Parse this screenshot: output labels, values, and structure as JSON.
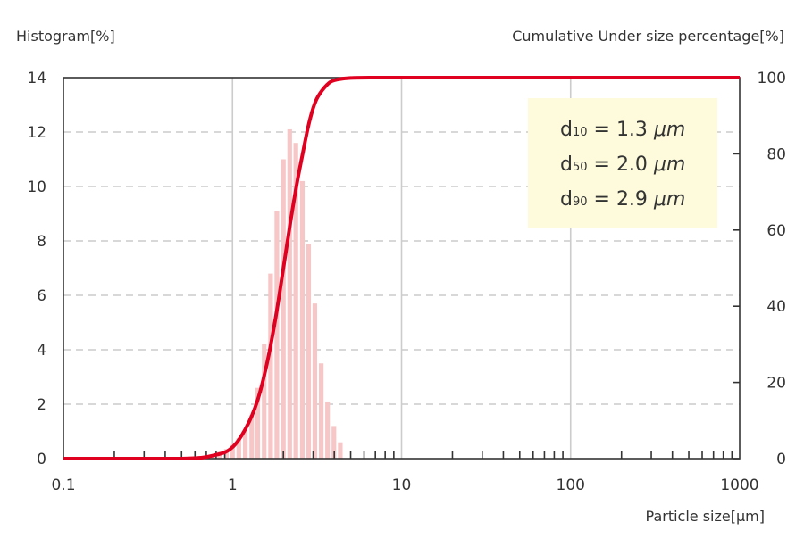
{
  "chart_data": {
    "type": "bar+line",
    "y_left_label": "Histogram[%]",
    "y_right_label": "Cumulative Under size percentage[%]",
    "x_label": "Particle size[μm]",
    "x_scale": "log",
    "xlim": [
      0.1,
      1000
    ],
    "x_ticks": [
      "0.1",
      "1",
      "10",
      "100",
      "1000"
    ],
    "y_left_lim": [
      0,
      14
    ],
    "y_left_ticks": [
      "0",
      "2",
      "4",
      "6",
      "8",
      "10",
      "12",
      "14"
    ],
    "y_right_lim": [
      0,
      100
    ],
    "y_right_ticks": [
      "0",
      "20",
      "40",
      "60",
      "80",
      "100"
    ],
    "grid": true,
    "colors": {
      "histogram": "#f7c6c6",
      "cumulative": "#e0001f",
      "grid": "#cccccc",
      "annotation_bg": "#fdfbdc"
    },
    "histogram": {
      "x": [
        0.65,
        0.71,
        0.77,
        0.84,
        0.92,
        1.0,
        1.09,
        1.19,
        1.3,
        1.41,
        1.54,
        1.68,
        1.83,
        2.0,
        2.18,
        2.37,
        2.59,
        2.82,
        3.07,
        3.35,
        3.65,
        3.98,
        4.34
      ],
      "values": [
        0.05,
        0.1,
        0.15,
        0.25,
        0.35,
        0.5,
        0.75,
        1.05,
        1.6,
        2.6,
        4.2,
        6.8,
        9.1,
        11.0,
        12.1,
        11.6,
        10.2,
        7.9,
        5.7,
        3.5,
        2.1,
        1.2,
        0.6
      ]
    },
    "cumulative": {
      "x": [
        0.1,
        0.5,
        0.8,
        1.0,
        1.2,
        1.4,
        1.6,
        1.8,
        2.0,
        2.2,
        2.4,
        2.6,
        2.8,
        3.0,
        3.2,
        3.6,
        4.0,
        5.0,
        7.0,
        10,
        100,
        1000
      ],
      "values": [
        0,
        0,
        1,
        3,
        8,
        15,
        25,
        37,
        50,
        62,
        72,
        80,
        87,
        92,
        95,
        98,
        99.3,
        99.9,
        100,
        100,
        100,
        100
      ]
    },
    "annotations": [
      {
        "symbol": "d",
        "subscript": "10",
        "value": "1.3",
        "unit": "μm"
      },
      {
        "symbol": "d",
        "subscript": "50",
        "value": "2.0",
        "unit": "μm"
      },
      {
        "symbol": "d",
        "subscript": "90",
        "value": "2.9",
        "unit": "μm"
      }
    ]
  }
}
